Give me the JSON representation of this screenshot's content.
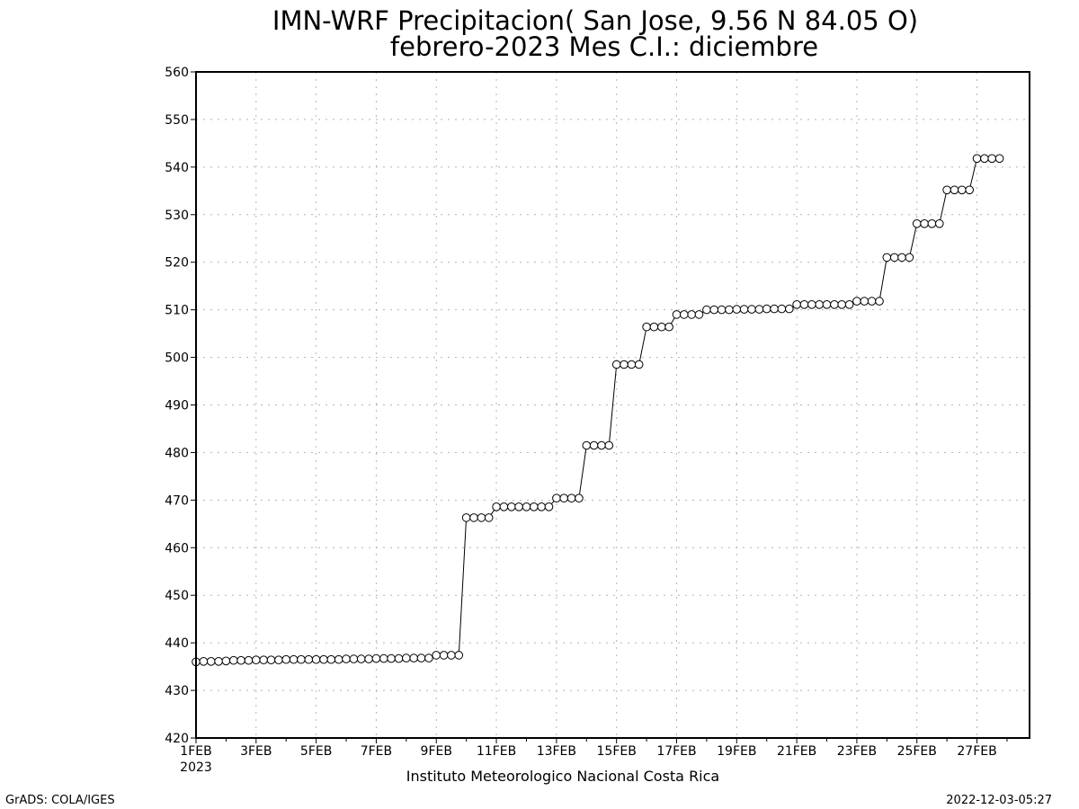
{
  "chart_data": {
    "type": "line",
    "title": "IMN-WRF  Precipitacion( San Jose, 9.56  N 84.05  O)",
    "subtitle": "febrero-2023 Mes C.I.: diciembre",
    "xlabel": "",
    "ylabel": "",
    "ylim": [
      420,
      560
    ],
    "yticks": [
      420,
      430,
      440,
      450,
      460,
      470,
      480,
      490,
      500,
      510,
      520,
      530,
      540,
      550,
      560
    ],
    "xlim": [
      1,
      28.75
    ],
    "xticks": [
      {
        "day": 1,
        "label": "1FEB"
      },
      {
        "day": 3,
        "label": "3FEB"
      },
      {
        "day": 5,
        "label": "5FEB"
      },
      {
        "day": 7,
        "label": "7FEB"
      },
      {
        "day": 9,
        "label": "9FEB"
      },
      {
        "day": 11,
        "label": "11FEB"
      },
      {
        "day": 13,
        "label": "13FEB"
      },
      {
        "day": 15,
        "label": "15FEB"
      },
      {
        "day": 17,
        "label": "17FEB"
      },
      {
        "day": 19,
        "label": "19FEB"
      },
      {
        "day": 21,
        "label": "21FEB"
      },
      {
        "day": 23,
        "label": "23FEB"
      },
      {
        "day": 25,
        "label": "25FEB"
      },
      {
        "day": 27,
        "label": "27FEB"
      }
    ],
    "year_label": "2023",
    "grid": true,
    "marker": "open-circle",
    "x_step_hours": 6,
    "series": [
      {
        "values": [
          436.0,
          436.1,
          436.1,
          436.1,
          436.2,
          436.3,
          436.3,
          436.3,
          436.4,
          436.4,
          436.4,
          436.4,
          436.5,
          436.5,
          436.5,
          436.5,
          436.5,
          436.5,
          436.5,
          436.5,
          436.6,
          436.6,
          436.6,
          436.6,
          436.7,
          436.7,
          436.7,
          436.7,
          436.8,
          436.8,
          436.8,
          436.8,
          437.4,
          437.4,
          437.4,
          437.4,
          466.3,
          466.3,
          466.3,
          466.3,
          468.6,
          468.6,
          468.6,
          468.6,
          468.6,
          468.6,
          468.6,
          468.6,
          470.4,
          470.4,
          470.4,
          470.4,
          481.5,
          481.5,
          481.5,
          481.5,
          498.5,
          498.5,
          498.5,
          498.5,
          506.4,
          506.4,
          506.4,
          506.4,
          509.0,
          509.0,
          509.0,
          509.0,
          510.0,
          510.0,
          510.0,
          510.0,
          510.1,
          510.1,
          510.1,
          510.1,
          510.2,
          510.2,
          510.2,
          510.2,
          511.1,
          511.1,
          511.1,
          511.1,
          511.1,
          511.1,
          511.1,
          511.1,
          511.8,
          511.8,
          511.8,
          511.8,
          521.0,
          521.0,
          521.0,
          521.0,
          528.1,
          528.1,
          528.1,
          528.1,
          535.2,
          535.2,
          535.2,
          535.2,
          541.8,
          541.8,
          541.8,
          541.8
        ]
      }
    ]
  },
  "footer": {
    "institution": "Instituto Meteorologico Nacional Costa Rica",
    "software": "GrADS: COLA/IGES",
    "timestamp": "2022-12-03-05:27"
  }
}
